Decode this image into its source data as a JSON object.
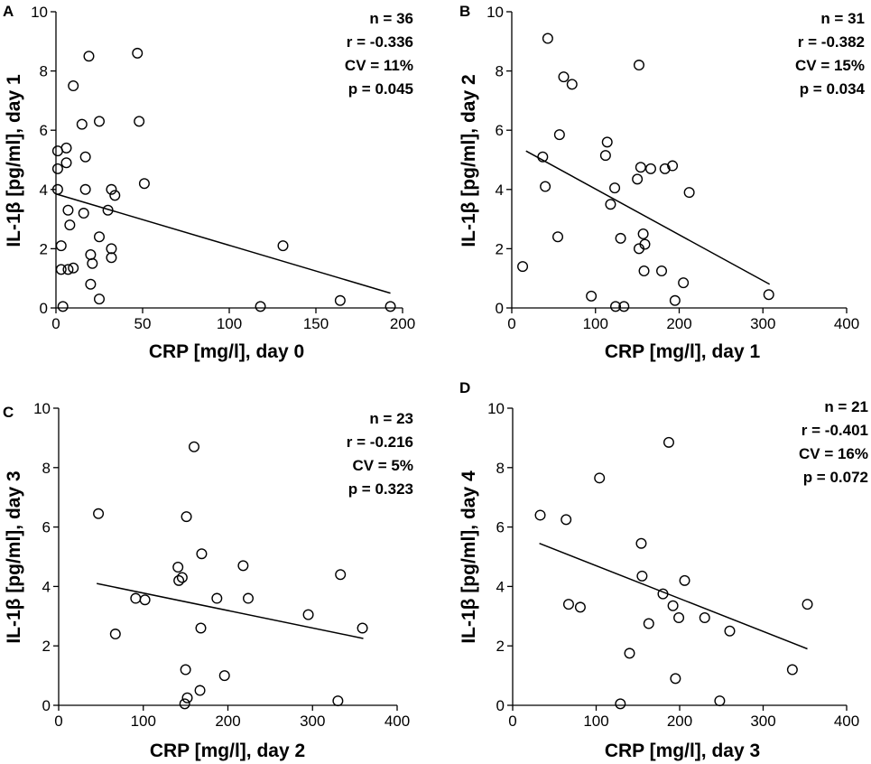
{
  "chart_data": [
    {
      "panel": "A",
      "type": "scatter",
      "xlabel": "CRP [mg/l], day 0",
      "ylabel": "IL-1β [pg/ml], day 1",
      "xlim": [
        0,
        200
      ],
      "xticks": [
        0,
        50,
        100,
        150,
        200
      ],
      "ylim": [
        0,
        10
      ],
      "yticks": [
        0,
        2,
        4,
        6,
        8,
        10
      ],
      "stats": [
        "n = 36",
        "r = -0.336",
        "CV = 11%",
        "p = 0.045"
      ],
      "points": [
        [
          1,
          5.3
        ],
        [
          1,
          4.7
        ],
        [
          1,
          4.0
        ],
        [
          3,
          2.1
        ],
        [
          3,
          1.3
        ],
        [
          4,
          0.05
        ],
        [
          6,
          4.9
        ],
        [
          6,
          5.4
        ],
        [
          7,
          1.3
        ],
        [
          7,
          3.3
        ],
        [
          8,
          2.8
        ],
        [
          10,
          7.5
        ],
        [
          10,
          1.35
        ],
        [
          15,
          6.2
        ],
        [
          16,
          3.2
        ],
        [
          17,
          5.1
        ],
        [
          17,
          4.0
        ],
        [
          19,
          8.5
        ],
        [
          20,
          1.8
        ],
        [
          21,
          1.5
        ],
        [
          20,
          0.8
        ],
        [
          25,
          6.3
        ],
        [
          25,
          2.4
        ],
        [
          25,
          0.3
        ],
        [
          30,
          3.3
        ],
        [
          32,
          4.0
        ],
        [
          32,
          2.0
        ],
        [
          32,
          1.7
        ],
        [
          34,
          3.8
        ],
        [
          47,
          8.6
        ],
        [
          48,
          6.3
        ],
        [
          51,
          4.2
        ],
        [
          118,
          0.05
        ],
        [
          131,
          2.1
        ],
        [
          164,
          0.25
        ],
        [
          193,
          0.05
        ]
      ],
      "fit": [
        [
          0,
          3.85
        ],
        [
          193,
          0.5
        ]
      ]
    },
    {
      "panel": "B",
      "type": "scatter",
      "xlabel": "CRP [mg/l], day 1",
      "ylabel": "IL-1β [pg/ml], day 2",
      "xlim": [
        0,
        400
      ],
      "xticks": [
        0,
        100,
        200,
        300,
        400
      ],
      "ylim": [
        0,
        10
      ],
      "yticks": [
        0,
        2,
        4,
        6,
        8,
        10
      ],
      "stats": [
        "n = 31",
        "r = -0.382",
        "CV = 15%",
        "p = 0.034"
      ],
      "points": [
        [
          13,
          1.4
        ],
        [
          37,
          5.1
        ],
        [
          40,
          4.1
        ],
        [
          43,
          9.1
        ],
        [
          55,
          2.4
        ],
        [
          57,
          5.85
        ],
        [
          62,
          7.8
        ],
        [
          72,
          7.55
        ],
        [
          95,
          0.4
        ],
        [
          112,
          5.15
        ],
        [
          114,
          5.6
        ],
        [
          118,
          3.5
        ],
        [
          123,
          4.05
        ],
        [
          124,
          0.05
        ],
        [
          130,
          2.35
        ],
        [
          134,
          0.05
        ],
        [
          150,
          4.35
        ],
        [
          152,
          8.2
        ],
        [
          152,
          2.0
        ],
        [
          154,
          4.75
        ],
        [
          157,
          2.5
        ],
        [
          158,
          1.25
        ],
        [
          159,
          2.15
        ],
        [
          166,
          4.7
        ],
        [
          179,
          1.25
        ],
        [
          183,
          4.7
        ],
        [
          192,
          4.8
        ],
        [
          195,
          0.25
        ],
        [
          205,
          0.85
        ],
        [
          212,
          3.9
        ],
        [
          307,
          0.45
        ]
      ],
      "fit": [
        [
          17,
          5.3
        ],
        [
          308,
          0.8
        ]
      ]
    },
    {
      "panel": "C",
      "type": "scatter",
      "xlabel": "CRP [mg/l], day 2",
      "ylabel": "IL-1β [pg/ml], day 3",
      "xlim": [
        0,
        400
      ],
      "xticks": [
        0,
        100,
        200,
        300,
        400
      ],
      "ylim": [
        0,
        10
      ],
      "yticks": [
        0,
        2,
        4,
        6,
        8,
        10
      ],
      "stats": [
        "n = 23",
        "r = -0.216",
        "CV = 5%",
        "p = 0.323"
      ],
      "points": [
        [
          47,
          6.45
        ],
        [
          67,
          2.4
        ],
        [
          91,
          3.6
        ],
        [
          102,
          3.55
        ],
        [
          141,
          4.65
        ],
        [
          142,
          4.2
        ],
        [
          146,
          4.3
        ],
        [
          149,
          0.05
        ],
        [
          150,
          1.2
        ],
        [
          151,
          6.35
        ],
        [
          152,
          0.25
        ],
        [
          160,
          8.7
        ],
        [
          167,
          0.5
        ],
        [
          168,
          2.6
        ],
        [
          169,
          5.1
        ],
        [
          187,
          3.6
        ],
        [
          196,
          1.0
        ],
        [
          218,
          4.7
        ],
        [
          224,
          3.6
        ],
        [
          295,
          3.05
        ],
        [
          330,
          0.15
        ],
        [
          333,
          4.4
        ],
        [
          359,
          2.6
        ]
      ],
      "fit": [
        [
          45,
          4.1
        ],
        [
          360,
          2.25
        ]
      ]
    },
    {
      "panel": "D",
      "type": "scatter",
      "xlabel": "CRP [mg/l], day 3",
      "ylabel": "IL-1β [pg/ml], day 4",
      "xlim": [
        0,
        400
      ],
      "xticks": [
        0,
        100,
        200,
        300,
        400
      ],
      "ylim": [
        0,
        10
      ],
      "yticks": [
        0,
        2,
        4,
        6,
        8,
        10
      ],
      "stats": [
        "n = 21",
        "r = -0.401",
        "CV = 16%",
        "p = 0.072"
      ],
      "points": [
        [
          33,
          6.4
        ],
        [
          64,
          6.25
        ],
        [
          67,
          3.4
        ],
        [
          81,
          3.3
        ],
        [
          104,
          7.65
        ],
        [
          129,
          0.05
        ],
        [
          140,
          1.75
        ],
        [
          154,
          5.45
        ],
        [
          155,
          4.35
        ],
        [
          163,
          2.75
        ],
        [
          180,
          3.75
        ],
        [
          187,
          8.85
        ],
        [
          192,
          3.35
        ],
        [
          195,
          0.9
        ],
        [
          199,
          2.95
        ],
        [
          206,
          4.2
        ],
        [
          230,
          2.95
        ],
        [
          248,
          0.15
        ],
        [
          260,
          2.5
        ],
        [
          335,
          1.2
        ],
        [
          353,
          3.4
        ]
      ],
      "fit": [
        [
          32,
          5.45
        ],
        [
          353,
          1.9
        ]
      ]
    }
  ]
}
